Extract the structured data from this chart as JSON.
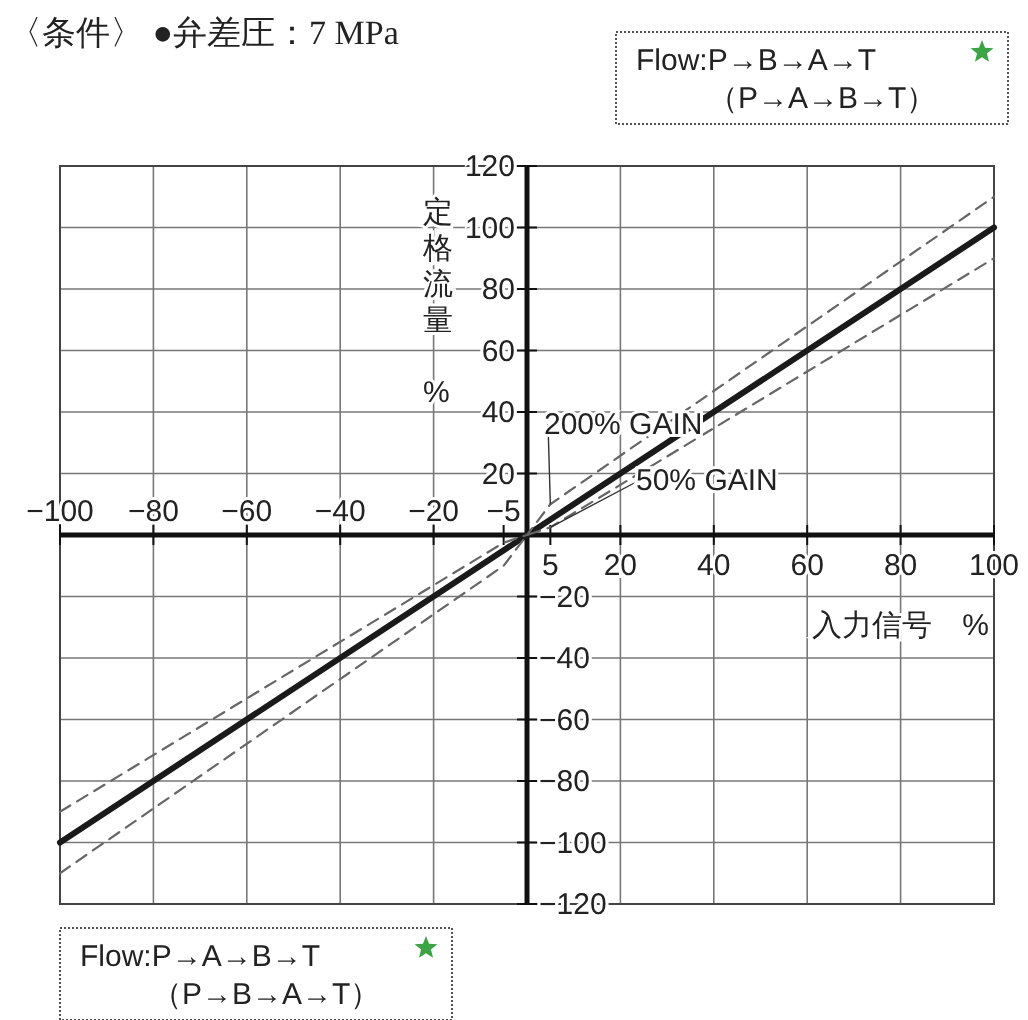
{
  "chart_data": {
    "type": "line",
    "title": "〈条件〉 ●弁差圧：7 MPa",
    "xlabel": "入力信号　%",
    "ylabel": "定格流量　%",
    "xlim": [
      -100,
      100
    ],
    "ylim": [
      -120,
      120
    ],
    "x2lim": [
      -100,
      100
    ],
    "y2lim": [
      -120,
      120
    ],
    "xticks": [
      5,
      20,
      40,
      60,
      80,
      100
    ],
    "x2ticks": [
      -100,
      -80,
      -60,
      -40,
      -20,
      -5
    ],
    "yticks": [
      20,
      40,
      60,
      80,
      100,
      120
    ],
    "y2ticks": [
      -120,
      -100,
      -80,
      -60,
      -40,
      -20
    ],
    "grid": true,
    "line_style": "solid",
    "series": [
      {
        "color": "#1a1a1a",
        "x": [
          -100,
          100
        ],
        "values": [
          -100,
          100
        ]
      },
      {
        "color": "#666666",
        "line_style": "dashed",
        "x": [
          -100,
          -5,
          0,
          5,
          100
        ],
        "values": [
          -90,
          -2.5,
          0,
          10,
          110
        ]
      },
      {
        "color": "#666666",
        "line_style": "dashed",
        "x": [
          -100,
          -5,
          0,
          5,
          100
        ],
        "values": [
          -110,
          -10,
          0,
          2.5,
          90
        ]
      }
    ],
    "annotations": [
      "Flow:P→B→A→T",
      "（P→A→B→T）",
      "Flow:P→A→B→T",
      "（P→B→A→T）",
      {
        "text": "200% GAIN",
        "x": 5,
        "y": 10
      },
      {
        "text": "50% GAIN",
        "x": 5,
        "y": 2.5
      }
    ]
  }
}
